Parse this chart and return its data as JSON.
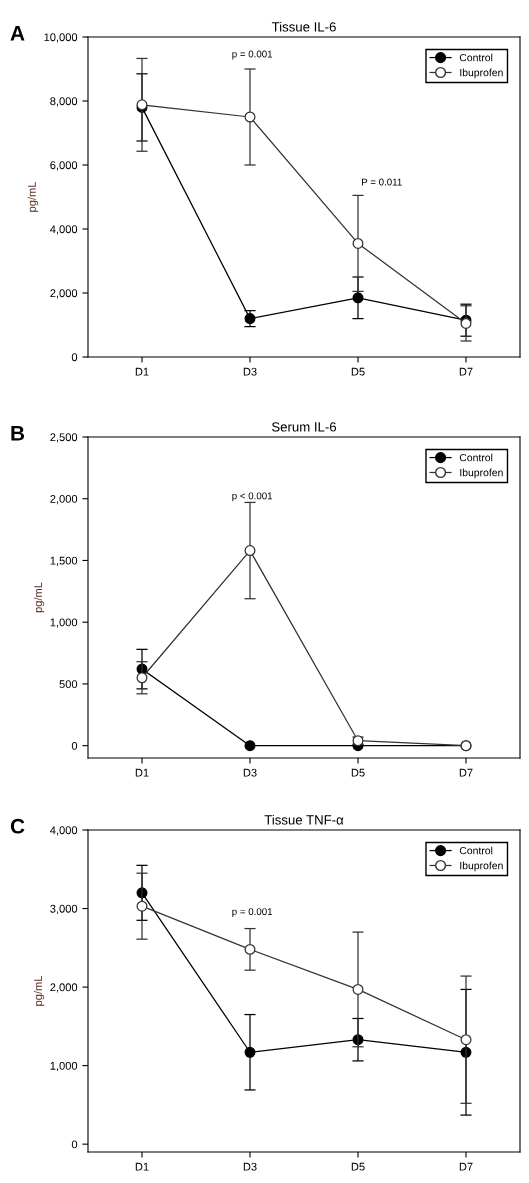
{
  "chart_data": [
    {
      "type": "line",
      "title": "Tissue IL-6",
      "ylabel": "pg/mL",
      "categories": [
        "D1",
        "D3",
        "D5",
        "D7"
      ],
      "ylim": [
        0,
        10000
      ],
      "yticks": [
        {
          "value": 0,
          "label": "0"
        },
        {
          "value": 2000,
          "label": "2,000"
        },
        {
          "value": 4000,
          "label": "4,000"
        },
        {
          "value": 6000,
          "label": "6,000"
        },
        {
          "value": 8000,
          "label": "8,000"
        },
        {
          "value": 10000,
          "label": "10,000"
        }
      ],
      "marker": "circle",
      "legend": "top right",
      "grid": false,
      "series": [
        {
          "name": "Control",
          "color": "#000000",
          "values": [
            7800,
            1200,
            1850,
            1150
          ],
          "errors": [
            1050,
            250,
            650,
            500
          ]
        },
        {
          "name": "Ibuprofen",
          "color": "#333333",
          "values": [
            7880,
            7500,
            3550,
            1050
          ],
          "errors": [
            1450,
            1500,
            1500,
            550
          ]
        }
      ],
      "annotations": [
        "A",
        "p = 0.001",
        "P = 0.011"
      ]
    },
    {
      "type": "line",
      "title": "Serum IL-6",
      "ylabel": "pg/mL",
      "categories": [
        "D1",
        "D3",
        "D5",
        "D7"
      ],
      "ylim": [
        -100,
        2500
      ],
      "yticks": [
        {
          "value": 0,
          "label": "0"
        },
        {
          "value": 500,
          "label": "500"
        },
        {
          "value": 1000,
          "label": "1,000"
        },
        {
          "value": 1500,
          "label": "1,500"
        },
        {
          "value": 2000,
          "label": "2,000"
        },
        {
          "value": 2500,
          "label": "2,500"
        }
      ],
      "marker": "circle",
      "legend": "top right",
      "grid": false,
      "series": [
        {
          "name": "Control",
          "color": "#000000",
          "values": [
            620,
            0,
            0,
            0
          ],
          "errors": [
            160,
            null,
            null,
            null
          ]
        },
        {
          "name": "Ibuprofen",
          "color": "#333333",
          "values": [
            550,
            1580,
            40,
            0
          ],
          "errors": [
            130,
            390,
            30,
            null
          ]
        }
      ],
      "annotations": [
        "B",
        "p < 0.001"
      ]
    },
    {
      "type": "line",
      "title": "Tissue TNF-α",
      "ylabel": "pg/mL",
      "categories": [
        "D1",
        "D3",
        "D5",
        "D7"
      ],
      "ylim": [
        -100,
        4000
      ],
      "yticks": [
        {
          "value": 0,
          "label": "0"
        },
        {
          "value": 1000,
          "label": "1,000"
        },
        {
          "value": 2000,
          "label": "2,000"
        },
        {
          "value": 3000,
          "label": "3,000"
        },
        {
          "value": 4000,
          "label": "4,000"
        }
      ],
      "marker": "circle",
      "legend": "top right",
      "grid": false,
      "series": [
        {
          "name": "Control",
          "color": "#000000",
          "values": [
            3200,
            1170,
            1330,
            1170
          ],
          "errors": [
            350,
            480,
            270,
            800
          ]
        },
        {
          "name": "Ibuprofen",
          "color": "#333333",
          "values": [
            3030,
            2480,
            1970,
            1330
          ],
          "errors": [
            420,
            265,
            730,
            810
          ]
        }
      ],
      "annotations": [
        "C",
        "p = 0.001"
      ]
    }
  ]
}
